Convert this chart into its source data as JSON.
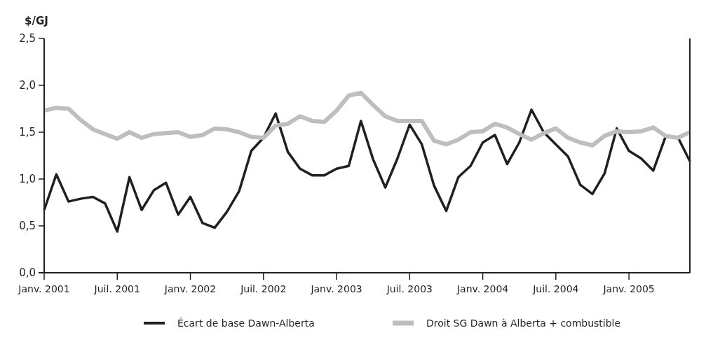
{
  "chart_data": {
    "type": "line",
    "ylabel": "$/GJ",
    "categories": [
      "Janv. 2001",
      null,
      null,
      null,
      null,
      null,
      "Juil. 2001",
      null,
      null,
      null,
      null,
      null,
      "Janv. 2002",
      null,
      null,
      null,
      null,
      null,
      "Juil. 2002",
      null,
      null,
      null,
      null,
      null,
      "Janv. 2003",
      null,
      null,
      null,
      null,
      null,
      "Juil. 2003",
      null,
      null,
      null,
      null,
      null,
      "Janv. 2004",
      null,
      null,
      null,
      null,
      null,
      "Juil. 2004",
      null,
      null,
      null,
      null,
      null,
      "Janv. 2005",
      null,
      null,
      null,
      null,
      null
    ],
    "series": [
      {
        "name": "Écart de base Dawn-Alberta",
        "color": "#231f20",
        "values": [
          0.67,
          1.05,
          0.76,
          0.79,
          0.81,
          0.74,
          0.44,
          1.02,
          0.67,
          0.88,
          0.96,
          0.62,
          0.81,
          0.53,
          0.48,
          0.65,
          0.87,
          1.3,
          1.44,
          1.7,
          1.29,
          1.11,
          1.04,
          1.04,
          1.11,
          1.14,
          1.62,
          1.21,
          0.91,
          1.22,
          1.58,
          1.37,
          0.93,
          0.66,
          1.02,
          1.14,
          1.39,
          1.47,
          1.16,
          1.39,
          1.74,
          1.5,
          1.37,
          1.24,
          0.94,
          0.84,
          1.06,
          1.54,
          1.3,
          1.22,
          1.09,
          1.45,
          1.45,
          1.19
        ]
      },
      {
        "name": "Droit SG Dawn à Alberta + combustible",
        "color": "#bcbec0",
        "values": [
          1.73,
          1.76,
          1.75,
          1.63,
          1.53,
          1.48,
          1.43,
          1.5,
          1.44,
          1.48,
          1.49,
          1.5,
          1.45,
          1.47,
          1.54,
          1.53,
          1.5,
          1.45,
          1.44,
          1.57,
          1.59,
          1.67,
          1.62,
          1.61,
          1.73,
          1.89,
          1.92,
          1.79,
          1.67,
          1.62,
          1.62,
          1.62,
          1.41,
          1.37,
          1.42,
          1.5,
          1.51,
          1.59,
          1.55,
          1.48,
          1.42,
          1.49,
          1.54,
          1.44,
          1.39,
          1.36,
          1.46,
          1.51,
          1.5,
          1.51,
          1.55,
          1.46,
          1.44,
          1.5
        ]
      }
    ],
    "ylim": [
      0,
      2.5
    ],
    "yticks": [
      {
        "value": 0,
        "label": "0,0"
      },
      {
        "value": 0.5,
        "label": "0,5"
      },
      {
        "value": 1,
        "label": "1,0"
      },
      {
        "value": 1.5,
        "label": "1,5"
      },
      {
        "value": 2,
        "label": "2,0"
      },
      {
        "value": 2.5,
        "label": "2,5"
      }
    ],
    "grid": false,
    "legend": "bottom",
    "marker": "none",
    "line_style": "solid"
  }
}
